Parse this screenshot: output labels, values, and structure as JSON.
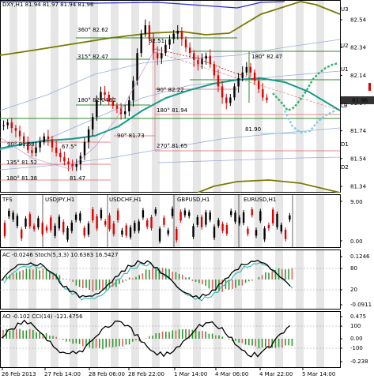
{
  "main": {
    "title": "DXY,H1  81.94 81.97 81.94 81.96",
    "price_axis": [
      "82.54",
      "82.34",
      "82.14",
      "81.94",
      "81.74",
      "81.54",
      "81.34"
    ],
    "current_price": "81.96",
    "right_labels": [
      "U3",
      "U2",
      "U1",
      "LB",
      "D1",
      "D2"
    ],
    "level_labels": [
      {
        "text": "360° 82.62",
        "color": "#1a8a1a"
      },
      {
        "text": "315° 82.47",
        "color": "#1a8a1a"
      },
      {
        "text": "180° 82.47",
        "color": "#1a8a1a"
      },
      {
        "text": "180° 82.04",
        "color": "#1a8a1a"
      },
      {
        "text": "90° 82.22",
        "color": "#cc0000"
      },
      {
        "text": "180° 81.94",
        "color": "#cc0000"
      },
      {
        "text": "90° 81.73",
        "color": "#cc0000"
      },
      {
        "text": "270° 81.65",
        "color": "#cc0000"
      },
      {
        "text": "90° 81.68",
        "color": "#cc0000"
      },
      {
        "text": "67.5°",
        "color": "#1a8a1a"
      },
      {
        "text": "135° 81.52",
        "color": "#cc0000"
      },
      {
        "text": "180° 81.38",
        "color": "#cc0000"
      }
    ],
    "price_marks": [
      "82.51",
      "82",
      "81.47",
      "81.90"
    ]
  },
  "tfs": {
    "title": "TFS",
    "subs": [
      "USDJPY,H1",
      "USDCHF,H1",
      "GBPUSD,H1",
      "EURUSD,H1"
    ],
    "axis": [
      "9.00",
      "0.00"
    ]
  },
  "ac": {
    "title": "AC -0.0246   Stoch(5,3,3) 10.6383 16.5427",
    "axis": [
      "0.1246",
      "80",
      "20",
      "-0.0911"
    ]
  },
  "ao": {
    "title": "AO -0.102   CCI(14) -121.4756",
    "axis": [
      "0.475",
      "100",
      "0.00",
      "-100",
      "-0.238"
    ]
  },
  "time_axis": [
    "26 Feb 2013",
    "27 Feb 14:00",
    "28 Feb 06:00",
    "28 Feb 22:00",
    "1 Mar 14:00",
    "4 Mar 06:00",
    "4 Mar 22:00",
    "5 Mar 14:00"
  ],
  "colors": {
    "bull": "#000000",
    "bear": "#e00000",
    "ma_teal": "#139a8a",
    "olive": "#7a7a00",
    "green_line": "#2d8a2d",
    "projection": "#3cb371",
    "projection_blue": "#87ceeb"
  }
}
